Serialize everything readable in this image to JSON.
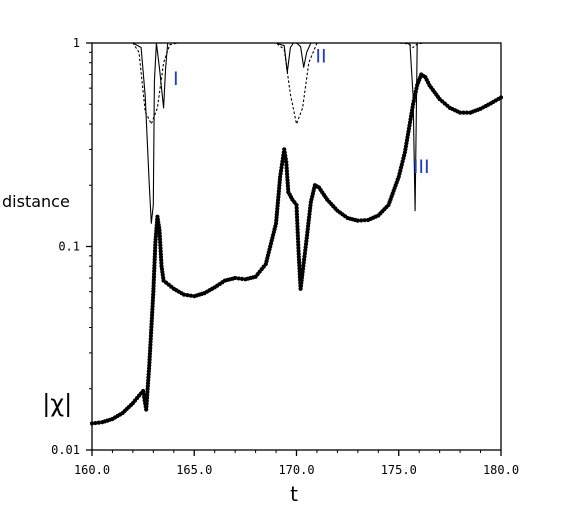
{
  "chart_data": {
    "type": "line",
    "title": "",
    "xlabel": "t",
    "ylabel": "distance",
    "xlim": [
      160.0,
      180.0
    ],
    "ylim": [
      0.01,
      1
    ],
    "yscale": "log",
    "grid": false,
    "x_ticks": [
      {
        "value": 160,
        "label": "160.0"
      },
      {
        "value": 165,
        "label": "165.0"
      },
      {
        "value": 170,
        "label": "170.0"
      },
      {
        "value": 175,
        "label": "175.0"
      },
      {
        "value": 180,
        "label": "180.0"
      }
    ],
    "y_ticks": [
      {
        "value": 1,
        "label": "1"
      },
      {
        "value": 0.1,
        "label": "0.1"
      },
      {
        "value": 0.01,
        "label": "0.01"
      }
    ],
    "series": [
      {
        "name": "|χ|",
        "style": "thick-dotted",
        "color": "#000000",
        "x": [
          160.0,
          160.5,
          161.0,
          161.5,
          162.0,
          162.3,
          162.5,
          162.65,
          162.8,
          163.0,
          163.1,
          163.2,
          163.3,
          163.4,
          163.5,
          164.0,
          164.5,
          165.0,
          165.5,
          166.0,
          166.5,
          167.0,
          167.5,
          168.0,
          168.5,
          169.0,
          169.2,
          169.4,
          169.5,
          169.6,
          169.8,
          170.0,
          170.1,
          170.2,
          170.3,
          170.5,
          170.7,
          170.9,
          171.1,
          171.5,
          172.0,
          172.5,
          173.0,
          173.5,
          174.0,
          174.5,
          175.0,
          175.3,
          175.5,
          175.7,
          175.9,
          176.1,
          176.3,
          176.5,
          177.0,
          177.5,
          178.0,
          178.5,
          179.0,
          179.5,
          180.0
        ],
        "y": [
          0.0135,
          0.0137,
          0.0142,
          0.0152,
          0.017,
          0.0185,
          0.0195,
          0.0158,
          0.026,
          0.06,
          0.105,
          0.14,
          0.12,
          0.08,
          0.068,
          0.062,
          0.058,
          0.057,
          0.059,
          0.063,
          0.068,
          0.07,
          0.069,
          0.071,
          0.082,
          0.13,
          0.22,
          0.3,
          0.26,
          0.185,
          0.17,
          0.16,
          0.095,
          0.062,
          0.075,
          0.11,
          0.165,
          0.2,
          0.195,
          0.17,
          0.15,
          0.138,
          0.134,
          0.135,
          0.142,
          0.16,
          0.22,
          0.29,
          0.38,
          0.5,
          0.62,
          0.7,
          0.68,
          0.62,
          0.53,
          0.48,
          0.455,
          0.455,
          0.475,
          0.505,
          0.54
        ]
      },
      {
        "name": "",
        "style": "thin-solid",
        "color": "#000000",
        "x": [
          160.0,
          162.0,
          162.4,
          162.6,
          162.8,
          162.9,
          163.0,
          163.05,
          163.15,
          163.3,
          163.5,
          163.6,
          163.7,
          164.0,
          169.0,
          169.4,
          169.55,
          169.7,
          169.85,
          170.0,
          170.2,
          170.35,
          170.5,
          170.7,
          170.9,
          175.0,
          175.4,
          175.55,
          175.7,
          175.8,
          175.9,
          176.2,
          180.0
        ],
        "y": [
          1,
          1,
          0.95,
          0.55,
          0.2,
          0.13,
          0.16,
          0.65,
          1,
          0.75,
          0.48,
          0.75,
          1,
          1,
          1,
          0.97,
          0.72,
          0.95,
          1,
          1,
          0.96,
          0.76,
          0.9,
          1,
          1,
          1,
          1,
          0.98,
          0.55,
          0.15,
          1,
          1,
          1
        ]
      },
      {
        "name": "",
        "style": "thin-dashed",
        "color": "#000000",
        "x": [
          160.0,
          162.0,
          162.3,
          162.6,
          162.9,
          163.2,
          163.5,
          163.8,
          164.2,
          169.0,
          169.4,
          169.7,
          170.0,
          170.3,
          170.6,
          171.0,
          175.0,
          175.5,
          175.7,
          175.9,
          176.2,
          180.0
        ],
        "y": [
          1,
          1,
          0.9,
          0.46,
          0.4,
          0.48,
          0.8,
          0.98,
          1,
          1,
          0.93,
          0.56,
          0.4,
          0.48,
          0.8,
          1,
          1,
          0.99,
          0.95,
          0.99,
          1,
          1
        ]
      }
    ],
    "annotations": [
      {
        "text": "I",
        "x": 164.1,
        "y": 0.62
      },
      {
        "text": "II",
        "x": 171.2,
        "y": 0.8
      },
      {
        "text": "III",
        "x": 176.1,
        "y": 0.23
      },
      {
        "text": "|χ|",
        "x": 158.3,
        "y": 0.0155
      }
    ]
  }
}
